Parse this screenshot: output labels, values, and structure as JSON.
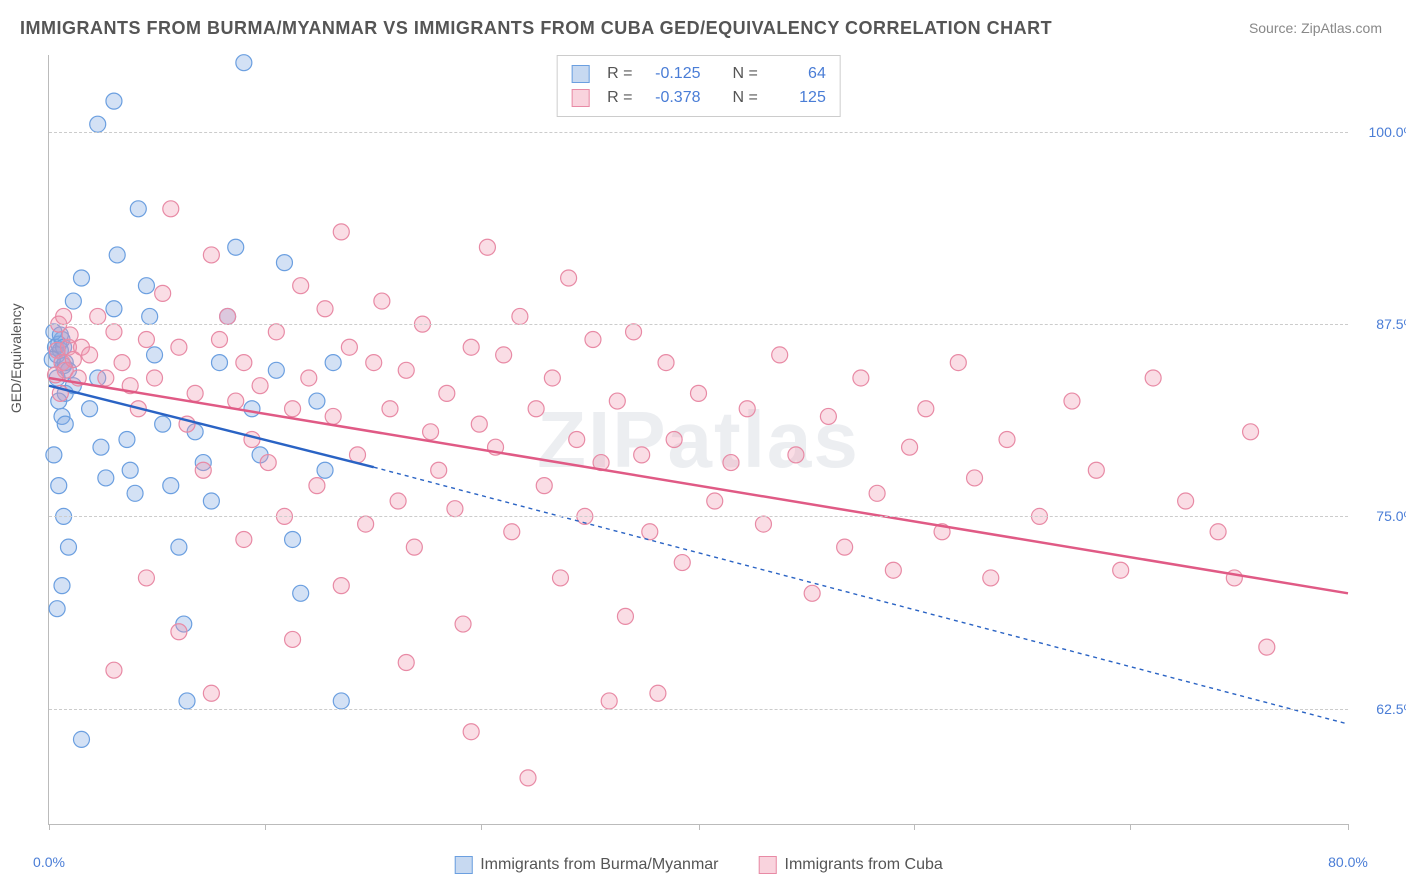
{
  "title": "IMMIGRANTS FROM BURMA/MYANMAR VS IMMIGRANTS FROM CUBA GED/EQUIVALENCY CORRELATION CHART",
  "source_prefix": "Source: ",
  "source_name": "ZipAtlas.com",
  "ylabel": "GED/Equivalency",
  "watermark": "ZIPatlas",
  "chart": {
    "type": "scatter",
    "background_color": "#ffffff",
    "grid_color": "#cccccc",
    "axis_color": "#bbbbbb",
    "tick_label_color": "#4a7dd6",
    "title_fontsize": 18,
    "label_fontsize": 14,
    "xlim": [
      0,
      80
    ],
    "ylim": [
      55,
      105
    ],
    "xtick_positions": [
      0,
      13.3,
      26.6,
      40,
      53.3,
      66.6,
      80
    ],
    "xtick_labels": [
      "0.0%",
      "",
      "",
      "",
      "",
      "",
      "80.0%"
    ],
    "ytick_positions": [
      62.5,
      75.0,
      87.5,
      100.0
    ],
    "ytick_labels": [
      "62.5%",
      "75.0%",
      "87.5%",
      "100.0%"
    ],
    "series": [
      {
        "id": "burma",
        "label": "Immigrants from Burma/Myanmar",
        "marker_fill": "rgba(130,170,225,0.35)",
        "marker_stroke": "#6b9fe0",
        "marker_radius": 8,
        "trend_color": "#2a63c4",
        "trend_width": 2.5,
        "trend_dash_extend": "4 4",
        "trend": {
          "x1": 0,
          "y1": 83.5,
          "x2": 20,
          "y2": 78.2,
          "ext_x2": 80,
          "ext_y2": 61.5
        },
        "R": "-0.125",
        "N": "64",
        "data": [
          [
            0.4,
            86.0
          ],
          [
            0.5,
            85.5
          ],
          [
            0.6,
            86.2
          ],
          [
            0.7,
            85.8
          ],
          [
            0.8,
            86.5
          ],
          [
            0.9,
            84.8
          ],
          [
            1.0,
            85.0
          ],
          [
            0.3,
            87.0
          ],
          [
            0.2,
            85.2
          ],
          [
            0.5,
            84.0
          ],
          [
            0.7,
            86.8
          ],
          [
            0.9,
            86.0
          ],
          [
            1.2,
            84.5
          ],
          [
            1.0,
            83.0
          ],
          [
            1.5,
            83.5
          ],
          [
            0.6,
            82.5
          ],
          [
            0.8,
            81.5
          ],
          [
            1.0,
            81.0
          ],
          [
            1.5,
            89.0
          ],
          [
            2.0,
            90.5
          ],
          [
            2.5,
            82.0
          ],
          [
            3.0,
            84.0
          ],
          [
            3.2,
            79.5
          ],
          [
            3.5,
            77.5
          ],
          [
            4.0,
            88.5
          ],
          [
            4.2,
            92.0
          ],
          [
            4.8,
            80.0
          ],
          [
            5.0,
            78.0
          ],
          [
            5.3,
            76.5
          ],
          [
            5.5,
            95.0
          ],
          [
            6.0,
            90.0
          ],
          [
            6.2,
            88.0
          ],
          [
            6.5,
            85.5
          ],
          [
            7.0,
            81.0
          ],
          [
            7.5,
            77.0
          ],
          [
            8.0,
            73.0
          ],
          [
            8.3,
            68.0
          ],
          [
            8.5,
            63.0
          ],
          [
            9.0,
            80.5
          ],
          [
            9.5,
            78.5
          ],
          [
            10.0,
            76.0
          ],
          [
            10.5,
            85.0
          ],
          [
            11.0,
            88.0
          ],
          [
            11.5,
            92.5
          ],
          [
            12.0,
            104.5
          ],
          [
            12.5,
            82.0
          ],
          [
            13.0,
            79.0
          ],
          [
            14.0,
            84.5
          ],
          [
            14.5,
            91.5
          ],
          [
            15.0,
            73.5
          ],
          [
            15.5,
            70.0
          ],
          [
            16.5,
            82.5
          ],
          [
            17.0,
            78.0
          ],
          [
            17.5,
            85.0
          ],
          [
            18.0,
            63.0
          ],
          [
            2.0,
            60.5
          ],
          [
            0.5,
            69.0
          ],
          [
            0.8,
            70.5
          ],
          [
            1.2,
            73.0
          ],
          [
            0.3,
            79.0
          ],
          [
            3.0,
            100.5
          ],
          [
            4.0,
            102.0
          ],
          [
            0.6,
            77.0
          ],
          [
            0.9,
            75.0
          ]
        ]
      },
      {
        "id": "cuba",
        "label": "Immigrants from Cuba",
        "marker_fill": "rgba(240,150,175,0.32)",
        "marker_stroke": "#e88aa5",
        "marker_radius": 8,
        "trend_color": "#e05a85",
        "trend_width": 2.5,
        "trend": {
          "x1": 0,
          "y1": 84.0,
          "x2": 80,
          "y2": 70.0
        },
        "R": "-0.378",
        "N": "125",
        "data": [
          [
            0.5,
            85.8
          ],
          [
            0.8,
            85.0
          ],
          [
            1.0,
            84.5
          ],
          [
            1.2,
            86.0
          ],
          [
            1.5,
            85.2
          ],
          [
            1.8,
            84.0
          ],
          [
            0.6,
            87.5
          ],
          [
            0.9,
            88.0
          ],
          [
            1.3,
            86.8
          ],
          [
            0.4,
            84.2
          ],
          [
            0.7,
            83.0
          ],
          [
            2.0,
            86.0
          ],
          [
            2.5,
            85.5
          ],
          [
            3.0,
            88.0
          ],
          [
            3.5,
            84.0
          ],
          [
            4.0,
            87.0
          ],
          [
            4.5,
            85.0
          ],
          [
            5.0,
            83.5
          ],
          [
            5.5,
            82.0
          ],
          [
            6.0,
            86.5
          ],
          [
            6.5,
            84.0
          ],
          [
            7.0,
            89.5
          ],
          [
            7.5,
            95.0
          ],
          [
            8.0,
            86.0
          ],
          [
            8.5,
            81.0
          ],
          [
            9.0,
            83.0
          ],
          [
            9.5,
            78.0
          ],
          [
            10.0,
            92.0
          ],
          [
            10.5,
            86.5
          ],
          [
            11.0,
            88.0
          ],
          [
            11.5,
            82.5
          ],
          [
            12.0,
            85.0
          ],
          [
            12.5,
            80.0
          ],
          [
            13.0,
            83.5
          ],
          [
            13.5,
            78.5
          ],
          [
            14.0,
            87.0
          ],
          [
            14.5,
            75.0
          ],
          [
            15.0,
            82.0
          ],
          [
            15.5,
            90.0
          ],
          [
            16.0,
            84.0
          ],
          [
            16.5,
            77.0
          ],
          [
            17.0,
            88.5
          ],
          [
            17.5,
            81.5
          ],
          [
            18.0,
            93.5
          ],
          [
            18.5,
            86.0
          ],
          [
            19.0,
            79.0
          ],
          [
            19.5,
            74.5
          ],
          [
            20.0,
            85.0
          ],
          [
            20.5,
            89.0
          ],
          [
            21.0,
            82.0
          ],
          [
            21.5,
            76.0
          ],
          [
            22.0,
            84.5
          ],
          [
            22.5,
            73.0
          ],
          [
            23.0,
            87.5
          ],
          [
            23.5,
            80.5
          ],
          [
            24.0,
            78.0
          ],
          [
            24.5,
            83.0
          ],
          [
            25.0,
            75.5
          ],
          [
            25.5,
            68.0
          ],
          [
            26.0,
            86.0
          ],
          [
            26.5,
            81.0
          ],
          [
            27.0,
            92.5
          ],
          [
            27.5,
            79.5
          ],
          [
            28.0,
            85.5
          ],
          [
            28.5,
            74.0
          ],
          [
            29.0,
            88.0
          ],
          [
            29.5,
            58.0
          ],
          [
            30.0,
            82.0
          ],
          [
            30.5,
            77.0
          ],
          [
            31.0,
            84.0
          ],
          [
            31.5,
            71.0
          ],
          [
            32.0,
            90.5
          ],
          [
            32.5,
            80.0
          ],
          [
            33.0,
            75.0
          ],
          [
            33.5,
            86.5
          ],
          [
            34.0,
            78.5
          ],
          [
            34.5,
            63.0
          ],
          [
            35.0,
            82.5
          ],
          [
            35.5,
            68.5
          ],
          [
            36.0,
            87.0
          ],
          [
            36.5,
            79.0
          ],
          [
            37.0,
            74.0
          ],
          [
            37.5,
            63.5
          ],
          [
            38.0,
            85.0
          ],
          [
            38.5,
            80.0
          ],
          [
            39.0,
            72.0
          ],
          [
            40.0,
            83.0
          ],
          [
            41.0,
            76.0
          ],
          [
            42.0,
            78.5
          ],
          [
            43.0,
            82.0
          ],
          [
            44.0,
            74.5
          ],
          [
            45.0,
            85.5
          ],
          [
            46.0,
            79.0
          ],
          [
            47.0,
            70.0
          ],
          [
            48.0,
            81.5
          ],
          [
            49.0,
            73.0
          ],
          [
            50.0,
            84.0
          ],
          [
            51.0,
            76.5
          ],
          [
            52.0,
            71.5
          ],
          [
            53.0,
            79.5
          ],
          [
            54.0,
            82.0
          ],
          [
            55.0,
            74.0
          ],
          [
            56.0,
            85.0
          ],
          [
            57.0,
            77.5
          ],
          [
            58.0,
            71.0
          ],
          [
            59.0,
            80.0
          ],
          [
            61.0,
            75.0
          ],
          [
            63.0,
            82.5
          ],
          [
            64.5,
            78.0
          ],
          [
            66.0,
            71.5
          ],
          [
            68.0,
            84.0
          ],
          [
            70.0,
            76.0
          ],
          [
            72.0,
            74.0
          ],
          [
            73.0,
            71.0
          ],
          [
            74.0,
            80.5
          ],
          [
            75.0,
            66.5
          ],
          [
            4.0,
            65.0
          ],
          [
            6.0,
            71.0
          ],
          [
            8.0,
            67.5
          ],
          [
            10.0,
            63.5
          ],
          [
            12.0,
            73.5
          ],
          [
            15.0,
            67.0
          ],
          [
            18.0,
            70.5
          ],
          [
            22.0,
            65.5
          ],
          [
            26.0,
            61.0
          ]
        ]
      }
    ]
  },
  "bottom_legend": [
    {
      "label_key": "chart.series.0.label",
      "fill": "rgba(130,170,225,0.45)",
      "stroke": "#6b9fe0"
    },
    {
      "label_key": "chart.series.1.label",
      "fill": "rgba(240,150,175,0.42)",
      "stroke": "#e88aa5"
    }
  ],
  "r_legend_labels": {
    "R": "R =",
    "N": "N ="
  }
}
